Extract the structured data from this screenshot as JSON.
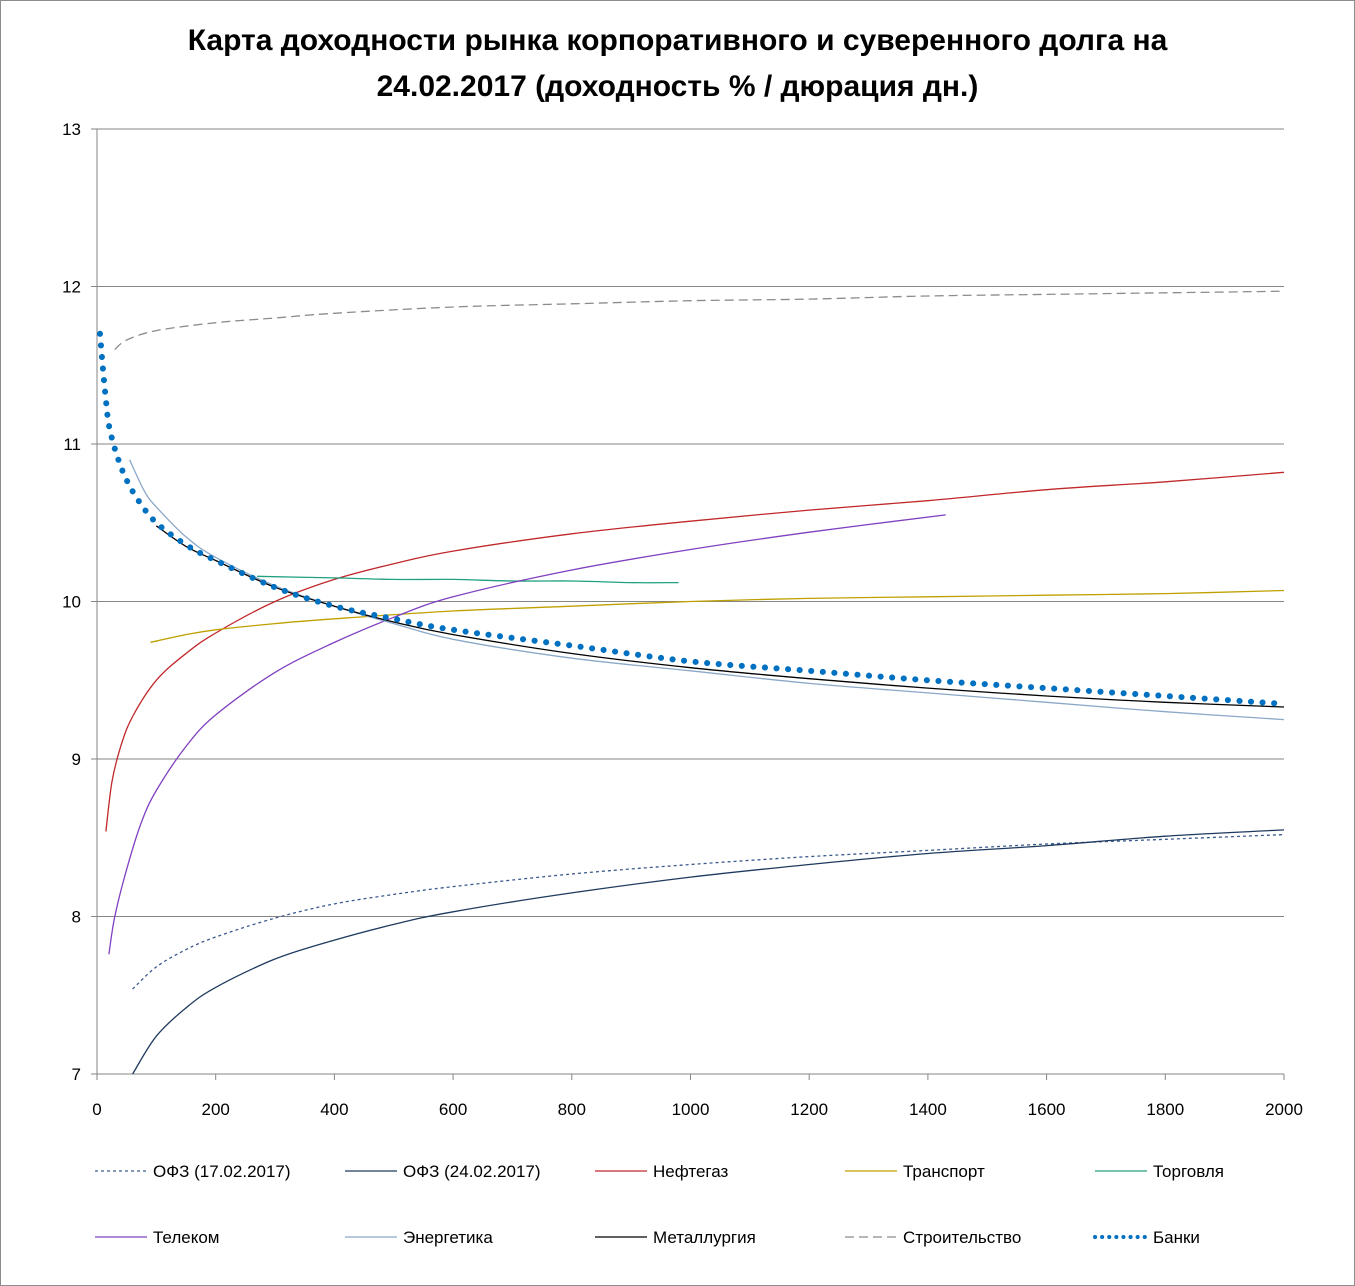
{
  "title_line1": "Карта доходности рынка корпоративного и суверенного долга на",
  "title_line2": "24.02.2017 (доходность % / дюрация дн.)",
  "chart_data": {
    "type": "line",
    "title": "Карта доходности рынка корпоративного и суверенного долга на 24.02.2017 (доходность % / дюрация дн.)",
    "xlim": [
      0,
      2000
    ],
    "ylim": [
      7,
      13
    ],
    "x_ticks": [
      0,
      200,
      400,
      600,
      800,
      1000,
      1200,
      1400,
      1600,
      1800,
      2000
    ],
    "y_ticks": [
      7,
      8,
      9,
      10,
      11,
      12,
      13
    ],
    "grid": "horizontal",
    "legend_position": "bottom",
    "series": [
      {
        "name": "ОФЗ (17.02.2017)",
        "color": "#3a5a8c",
        "style": "dotted",
        "x": [
          60,
          100,
          150,
          200,
          300,
          400,
          500,
          600,
          800,
          1000,
          1200,
          1400,
          1600,
          1800,
          2000
        ],
        "y": [
          7.54,
          7.68,
          7.79,
          7.87,
          7.99,
          8.08,
          8.14,
          8.19,
          8.27,
          8.33,
          8.38,
          8.42,
          8.46,
          8.49,
          8.52
        ]
      },
      {
        "name": "ОФЗ (24.02.2017)",
        "color": "#1f3a5f",
        "style": "solid",
        "x": [
          60,
          100,
          150,
          200,
          300,
          400,
          500,
          600,
          800,
          1000,
          1200,
          1400,
          1600,
          1800,
          2000
        ],
        "y": [
          7.0,
          7.24,
          7.42,
          7.55,
          7.73,
          7.85,
          7.95,
          8.03,
          8.15,
          8.25,
          8.33,
          8.4,
          8.45,
          8.51,
          8.55
        ]
      },
      {
        "name": "Нефтегаз",
        "color": "#c0282a",
        "style": "solid",
        "x": [
          15,
          25,
          40,
          60,
          100,
          150,
          200,
          300,
          400,
          500,
          600,
          800,
          1000,
          1200,
          1400,
          1600,
          1800,
          2000
        ],
        "y": [
          8.54,
          8.85,
          9.08,
          9.27,
          9.5,
          9.67,
          9.8,
          10.0,
          10.14,
          10.24,
          10.32,
          10.43,
          10.51,
          10.58,
          10.64,
          10.71,
          10.76,
          10.82
        ]
      },
      {
        "name": "Транспорт",
        "color": "#bfa000",
        "style": "solid",
        "x": [
          90,
          150,
          200,
          300,
          400,
          600,
          800,
          1000,
          1200,
          1400,
          1600,
          1800,
          2000
        ],
        "y": [
          9.74,
          9.79,
          9.82,
          9.86,
          9.89,
          9.94,
          9.97,
          10.0,
          10.02,
          10.03,
          10.04,
          10.05,
          10.07
        ]
      },
      {
        "name": "Торговля",
        "color": "#20a080",
        "style": "solid",
        "x": [
          270,
          400,
          500,
          600,
          700,
          800,
          900,
          980
        ],
        "y": [
          10.16,
          10.15,
          10.14,
          10.14,
          10.13,
          10.13,
          10.12,
          10.12
        ]
      },
      {
        "name": "Телеком",
        "color": "#8040c0",
        "style": "solid",
        "x": [
          20,
          30,
          50,
          75,
          100,
          150,
          200,
          300,
          400,
          500,
          600,
          800,
          1000,
          1200,
          1430
        ],
        "y": [
          7.76,
          8.0,
          8.3,
          8.6,
          8.8,
          9.08,
          9.28,
          9.55,
          9.74,
          9.9,
          10.03,
          10.2,
          10.33,
          10.44,
          10.55
        ]
      },
      {
        "name": "Энергетика",
        "color": "#8aa8c8",
        "style": "solid",
        "x": [
          55,
          80,
          100,
          150,
          200,
          300,
          400,
          500,
          600,
          800,
          1000,
          1200,
          1400,
          1600,
          1800,
          2000
        ],
        "y": [
          10.9,
          10.7,
          10.6,
          10.41,
          10.28,
          10.1,
          9.97,
          9.86,
          9.76,
          9.64,
          9.56,
          9.48,
          9.42,
          9.36,
          9.3,
          9.25
        ]
      },
      {
        "name": "Металлургия",
        "color": "#000000",
        "style": "solid",
        "x": [
          100,
          150,
          200,
          300,
          400,
          500,
          600,
          800,
          1000,
          1200,
          1400,
          1600,
          1800,
          2000
        ],
        "y": [
          10.48,
          10.35,
          10.26,
          10.09,
          9.97,
          9.87,
          9.79,
          9.67,
          9.58,
          9.51,
          9.45,
          9.4,
          9.36,
          9.33
        ]
      },
      {
        "name": "Строительство",
        "color": "#8c8c8c",
        "style": "dashed",
        "x": [
          30,
          50,
          100,
          200,
          300,
          400,
          600,
          800,
          1000,
          1200,
          1400,
          1600,
          1800,
          2000
        ],
        "y": [
          11.6,
          11.66,
          11.72,
          11.77,
          11.8,
          11.83,
          11.87,
          11.89,
          11.91,
          11.92,
          11.94,
          11.95,
          11.96,
          11.97
        ]
      },
      {
        "name": "Банки",
        "color": "#0070c0",
        "style": "dots",
        "x": [
          5,
          10,
          15,
          20,
          30,
          40,
          50,
          70,
          100,
          150,
          200,
          300,
          400,
          500,
          600,
          800,
          1000,
          1200,
          1400,
          1600,
          1800,
          2000
        ],
        "y": [
          11.7,
          11.48,
          11.28,
          11.12,
          10.97,
          10.86,
          10.77,
          10.64,
          10.5,
          10.36,
          10.26,
          10.09,
          9.97,
          9.89,
          9.82,
          9.72,
          9.62,
          9.56,
          9.5,
          9.45,
          9.4,
          9.35
        ]
      }
    ]
  }
}
